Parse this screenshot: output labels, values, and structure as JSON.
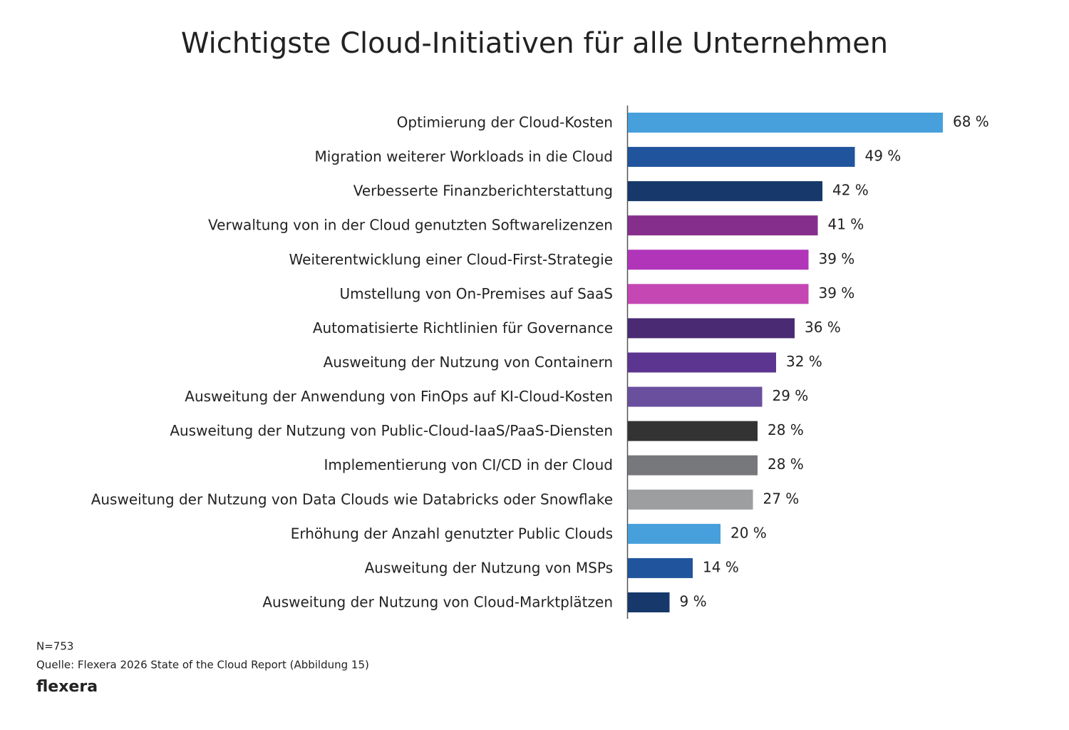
{
  "chart_data": {
    "type": "bar",
    "orientation": "horizontal",
    "title": "Wichtigste Cloud-Initiativen für alle Unternehmen",
    "categories": [
      "Optimierung der Cloud-Kosten",
      "Migration weiterer Workloads in die Cloud",
      "Verbesserte Finanzberichterstattung",
      "Verwaltung von in der Cloud genutzten Softwarelizenzen",
      "Weiterentwicklung einer Cloud-First-Strategie",
      "Umstellung von On-Premises auf SaaS",
      "Automatisierte Richtlinien für Governance",
      "Ausweitung der Nutzung von Containern",
      "Ausweitung der Anwendung von FinOps auf KI-Cloud-Kosten",
      "Ausweitung der Nutzung von Public-Cloud-IaaS/PaaS-Diensten",
      "Implementierung von CI/CD in der Cloud",
      "Ausweitung der Nutzung von Data Clouds wie Databricks oder Snowflake",
      "Erhöhung der Anzahl genutzter Public Clouds",
      "Ausweitung der Nutzung von MSPs",
      "Ausweitung der Nutzung von Cloud-Marktplätzen"
    ],
    "values": [
      68,
      49,
      42,
      41,
      39,
      39,
      36,
      32,
      29,
      28,
      28,
      27,
      20,
      14,
      9
    ],
    "value_labels": [
      "68 %",
      "49 %",
      "42 %",
      "41 %",
      "39 %",
      "39 %",
      "36 %",
      "32 %",
      "29 %",
      "28 %",
      "28 %",
      "27 %",
      "20 %",
      "14 %",
      "9 %"
    ],
    "colors": [
      "#47a0db",
      "#20549c",
      "#16386a",
      "#862e8c",
      "#b035b9",
      "#c447b3",
      "#4a2a72",
      "#5c3590",
      "#6b4f9f",
      "#333333",
      "#77787b",
      "#9d9ea0",
      "#47a0db",
      "#20549c",
      "#16386a"
    ],
    "note": "N=753",
    "source": "Quelle: Flexera 2026 State of the Cloud Report (Abbildung 15)",
    "logo": "flexera"
  }
}
